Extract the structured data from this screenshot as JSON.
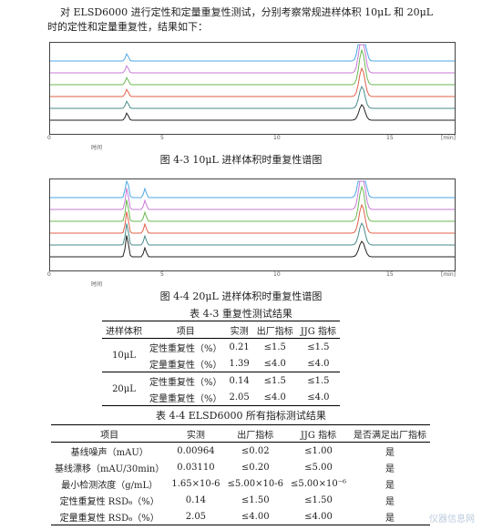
{
  "intro": {
    "line1": "对 ELSD6000 进行定性和定量重复性测试，分别考察常规进样体积 10μL 和 20μL",
    "line2": "时的定性和定量重复性，结果如下："
  },
  "figure1": {
    "caption": "图 4-3 10μL 进样体积时重复性谱图",
    "x_ticks": [
      "0",
      "5",
      "10",
      "15"
    ],
    "x_unit": "[min]",
    "axis_label": "时间"
  },
  "figure2": {
    "caption": "图 4-4 20μL 进样体积时重复性谱图",
    "x_ticks": [
      "0",
      "5",
      "10",
      "15"
    ],
    "x_unit": "[min]",
    "axis_label": "时间"
  },
  "trace_colors": [
    "#4ea7e6",
    "#c77bd6",
    "#69b850",
    "#e0604a",
    "#4a8a8a",
    "#222222"
  ],
  "table3": {
    "title": "表 4-3  重复性测试结果",
    "headers": [
      "进样体积",
      "项目",
      "实测",
      "出厂指标",
      "JJG 指标"
    ],
    "groups": [
      {
        "volume": "10μL",
        "rows": [
          [
            "定性重复性（%）",
            "0.21",
            "≤1.5",
            "≤1.5"
          ],
          [
            "定量重复性（%）",
            "1.39",
            "≤4.0",
            "≤4.0"
          ]
        ]
      },
      {
        "volume": "20μL",
        "rows": [
          [
            "定性重复性（%）",
            "0.14",
            "≤1.5",
            "≤1.5"
          ],
          [
            "定量重复性（%）",
            "2.05",
            "≤4.0",
            "≤4.0"
          ]
        ]
      }
    ]
  },
  "table4": {
    "title": "表 4-4 ELSD6000 所有指标测试结果",
    "headers": [
      "项目",
      "实测",
      "出厂指标",
      "JJG 指标",
      "是否满足出厂指标"
    ],
    "rows": [
      [
        "基线噪声（mAU）",
        "0.00964",
        "≤0.02",
        "≤1.00",
        "是"
      ],
      [
        "基线漂移（mAU/30min）",
        "0.03110",
        "≤0.20",
        "≤5.00",
        "是"
      ],
      [
        "最小检测浓度（g/mL）",
        "1.65×10-6",
        "≤5.00×10-6",
        "≤5.00×10⁻⁶",
        "是"
      ],
      [
        "定性重复性 RSD₆（%）",
        "0.14",
        "≤1.50",
        "≤1.50",
        "是"
      ],
      [
        "定量重复性 RSD₆（%）",
        "2.05",
        "≤4.00",
        "≤4.00",
        "是"
      ]
    ]
  },
  "watermark": "仪器信息网"
}
